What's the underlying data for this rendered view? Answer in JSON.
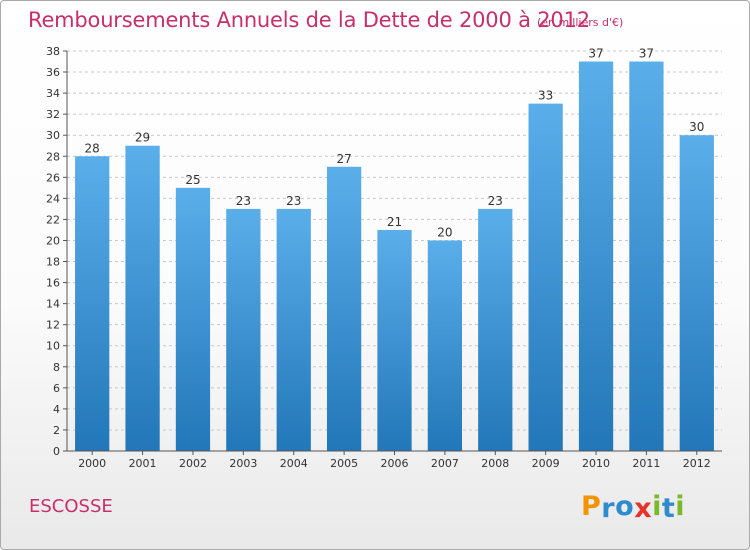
{
  "title": "Remboursements Annuels de la Dette de 2000 à 2012",
  "unit": "(en milliers d'€)",
  "region": "ESCOSSE",
  "logo": {
    "text": "Proxiti",
    "letters": [
      {
        "ch": "P",
        "color": "#f29400"
      },
      {
        "ch": "r",
        "color": "#2e8bd0"
      },
      {
        "ch": "o",
        "color": "#2e8bd0"
      },
      {
        "ch": "x",
        "color": "#e5332a"
      },
      {
        "ch": "i",
        "color": "#7ab929"
      },
      {
        "ch": "t",
        "color": "#2e8bd0"
      },
      {
        "ch": "i",
        "color": "#7ab929"
      }
    ]
  },
  "colors": {
    "title": "#c72f6a",
    "bar_top": "#5aaeea",
    "bar_bottom": "#2277b8",
    "grid": "#c8c8c8"
  },
  "chart_data": {
    "type": "bar",
    "title": "Remboursements Annuels de la Dette de 2000 à 2012",
    "unit": "(en milliers d'€)",
    "categories": [
      "2000",
      "2001",
      "2002",
      "2003",
      "2004",
      "2005",
      "2006",
      "2007",
      "2008",
      "2009",
      "2010",
      "2011",
      "2012"
    ],
    "values": [
      28,
      29,
      25,
      23,
      23,
      27,
      21,
      20,
      23,
      33,
      37,
      37,
      30
    ],
    "ylim": [
      0,
      38
    ],
    "yticks": [
      0,
      2,
      4,
      6,
      8,
      10,
      12,
      14,
      16,
      18,
      20,
      22,
      24,
      26,
      28,
      30,
      32,
      34,
      36,
      38
    ],
    "grid": true,
    "xlabel": "",
    "ylabel": ""
  }
}
